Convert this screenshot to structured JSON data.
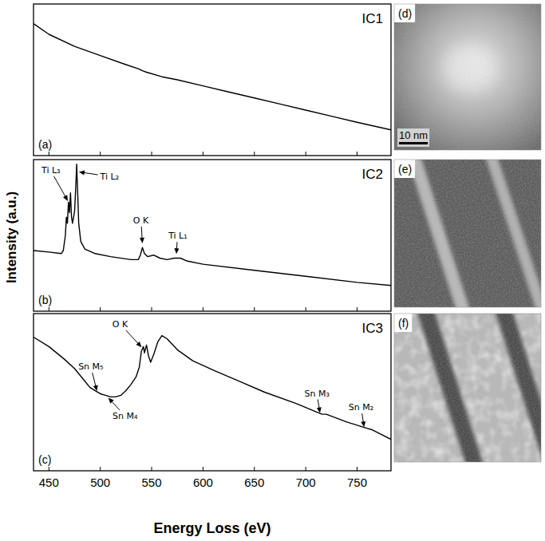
{
  "chart_data": [
    {
      "type": "line",
      "title": "IC1",
      "panel_label": "(a)",
      "color": "#000000",
      "xlim": [
        435,
        783
      ],
      "ylim": [
        0,
        100
      ],
      "xticks": [
        450,
        500,
        550,
        600,
        650,
        700,
        750
      ],
      "tick_labels": false,
      "x": [
        435,
        450,
        475,
        500,
        525,
        538,
        541,
        545,
        560,
        575,
        600,
        625,
        650,
        675,
        700,
        725,
        750,
        783
      ],
      "values": [
        87,
        80,
        72,
        66,
        60,
        57,
        56,
        55,
        52,
        50,
        46,
        42,
        38,
        34,
        30,
        26,
        22,
        17
      ],
      "annotations": []
    },
    {
      "type": "line",
      "title": "IC2",
      "panel_label": "(b)",
      "color": "#000000",
      "y_label": "Intensity (a.u.)",
      "xlim": [
        435,
        783
      ],
      "ylim": [
        0,
        100
      ],
      "xticks": [
        450,
        500,
        550,
        600,
        650,
        700,
        750
      ],
      "tick_labels": false,
      "x": [
        435,
        450,
        462,
        464,
        466,
        467,
        468,
        469,
        470,
        471,
        472,
        473,
        475,
        476,
        477,
        478,
        479,
        481,
        485,
        495,
        510,
        530,
        537,
        539,
        541,
        543,
        546,
        552,
        558,
        565,
        572,
        578,
        585,
        600,
        650,
        700,
        750,
        783
      ],
      "values": [
        40,
        39,
        38,
        40,
        50,
        62,
        58,
        72,
        65,
        78,
        62,
        58,
        66,
        80,
        97,
        78,
        58,
        46,
        41,
        38,
        36,
        34,
        34,
        37,
        42,
        38,
        36,
        37,
        35,
        34,
        35,
        35,
        33,
        31,
        27,
        23,
        19,
        17
      ],
      "annotations": [
        {
          "text": "Ti L₃",
          "x": 469,
          "y": 72
        },
        {
          "text": "Ti L₂",
          "x": 478,
          "y": 92
        },
        {
          "text": "O K",
          "x": 541,
          "y": 44
        },
        {
          "text": "Ti L₁",
          "x": 574,
          "y": 37
        }
      ]
    },
    {
      "type": "line",
      "title": "IC3",
      "panel_label": "(c)",
      "color": "#000000",
      "x_label": "Energy Loss (eV)",
      "xlim": [
        435,
        783
      ],
      "ylim": [
        0,
        100
      ],
      "xticks": [
        450,
        500,
        550,
        600,
        650,
        700,
        750
      ],
      "tick_labels": "x",
      "x": [
        435,
        450,
        465,
        475,
        485,
        490,
        495,
        500,
        505,
        510,
        515,
        520,
        525,
        530,
        535,
        538,
        540,
        542,
        543,
        545,
        547,
        549,
        552,
        556,
        560,
        565,
        575,
        590,
        610,
        635,
        660,
        690,
        712,
        716,
        720,
        740,
        760,
        765,
        783
      ],
      "values": [
        85,
        79,
        71,
        65,
        57,
        53,
        51,
        49,
        48,
        47,
        47,
        48,
        51,
        55,
        60,
        66,
        76,
        79,
        75,
        80,
        73,
        69,
        74,
        82,
        86,
        84,
        77,
        70,
        64,
        57,
        50,
        43,
        37,
        36,
        36,
        31,
        27,
        26,
        20
      ],
      "annotations": [
        {
          "text": "Sn M₅",
          "x": 497,
          "y": 50
        },
        {
          "text": "Sn M₄",
          "x": 507,
          "y": 47
        },
        {
          "text": "O K",
          "x": 541,
          "y": 78
        },
        {
          "text": "Sn M₃",
          "x": 714,
          "y": 36
        },
        {
          "text": "Sn M₂",
          "x": 757,
          "y": 27
        }
      ]
    }
  ],
  "images": [
    {
      "panel_label": "(d)",
      "scale_bar": "10 nm"
    },
    {
      "panel_label": "(e)"
    },
    {
      "panel_label": "(f)"
    }
  ]
}
